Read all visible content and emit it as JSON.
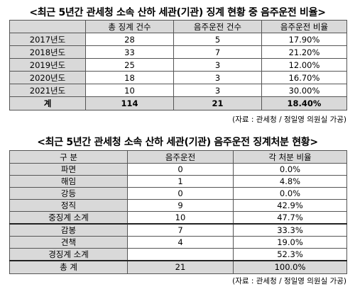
{
  "table1": {
    "title": "<최근 5년간 관세청 소속 산하 세관(기관) 징계 현황 중 음주운전 비율>",
    "headers": [
      "",
      "총 징계 건수",
      "음주운전 건수",
      "음주운전 비율"
    ],
    "rows": [
      [
        "2017년도",
        "28",
        "5",
        "17.90%"
      ],
      [
        "2018년도",
        "33",
        "7",
        "21.20%"
      ],
      [
        "2019년도",
        "25",
        "3",
        "12.00%"
      ],
      [
        "2020년도",
        "18",
        "3",
        "16.70%"
      ],
      [
        "2021년도",
        "10",
        "3",
        "30.00%"
      ]
    ],
    "total": [
      "계",
      "114",
      "21",
      "18.40%"
    ],
    "source": "(자료 : 관세청 / 정일영 의원실 가공)"
  },
  "table2": {
    "title": "<최근 5년간 관세청 소속 산하 세관(기관) 음주운전 징계처분 현황>",
    "headers": [
      "구 분",
      "음주운전",
      "각 처분 비율"
    ],
    "rows": [
      [
        "파면",
        "0",
        "0.0%"
      ],
      [
        "해임",
        "1",
        "4.8%"
      ],
      [
        "강등",
        "0",
        "0.0%"
      ],
      [
        "정직",
        "9",
        "42.9%"
      ]
    ],
    "heavy_subtotal": [
      "중징계 소계",
      "10",
      "47.7%"
    ],
    "light_rows": [
      [
        "감봉",
        "7",
        "33.3%"
      ],
      [
        "견책",
        "4",
        "19.0%"
      ]
    ],
    "light_subtotal": [
      "경징계 소계",
      "",
      "52.3%"
    ],
    "total": [
      "총 계",
      "21",
      "100.0%"
    ],
    "source": "(자료 : 관세청 / 정일영 의원실 가공)"
  }
}
